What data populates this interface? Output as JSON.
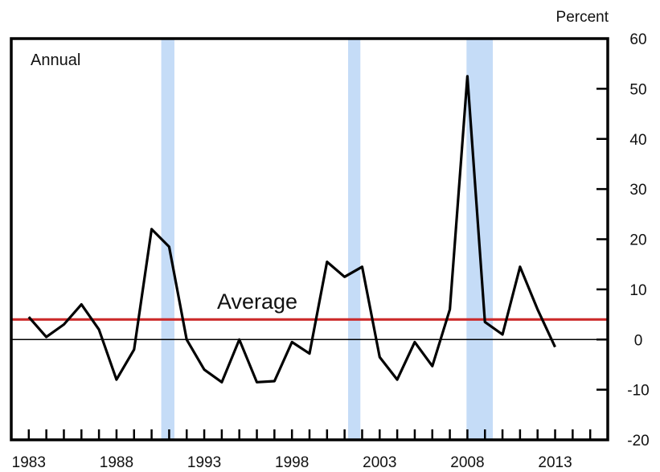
{
  "chart_data": {
    "type": "line",
    "frequency_label": "Annual",
    "unit_label": "Percent",
    "title": "",
    "xlabel": "",
    "ylabel": "",
    "x_tick_labels": [
      "1983",
      "1988",
      "1993",
      "1998",
      "2003",
      "2008",
      "2013"
    ],
    "y_tick_labels": [
      "60",
      "50",
      "40",
      "30",
      "20",
      "10",
      "0",
      "-10",
      "-20"
    ],
    "ylim": [
      -20,
      60
    ],
    "xlim": [
      1982,
      2016
    ],
    "y_axis_position": "right",
    "grid": false,
    "zero_line": true,
    "series": [
      {
        "x": [
          1983,
          1984,
          1985,
          1986,
          1987,
          1988,
          1989,
          1990,
          1991,
          1992,
          1993,
          1994,
          1995,
          1996,
          1997,
          1998,
          1999,
          2000,
          2001,
          2002,
          2003,
          2004,
          2005,
          2006,
          2007,
          2008,
          2009,
          2010,
          2011,
          2012,
          2013
        ],
        "values": [
          4.5,
          0.5,
          3.0,
          7.0,
          2.0,
          -8.0,
          -2.0,
          22.0,
          18.5,
          0.0,
          -6.0,
          -8.5,
          0.0,
          -8.5,
          -8.3,
          -0.5,
          -2.8,
          15.5,
          12.5,
          14.5,
          -3.5,
          -8.0,
          -0.5,
          -5.3,
          6.0,
          52.5,
          3.5,
          1.0,
          14.5,
          6.0,
          -1.5
        ],
        "color": "#000000"
      }
    ],
    "average": {
      "label": "Average",
      "value": 4.0,
      "color": "#cc2b2b"
    },
    "recession_bands": [
      {
        "start": 1990.55,
        "end": 1991.3
      },
      {
        "start": 2001.2,
        "end": 2001.9
      },
      {
        "start": 2007.95,
        "end": 2009.45
      }
    ],
    "recession_color": "#c5dcf7"
  }
}
